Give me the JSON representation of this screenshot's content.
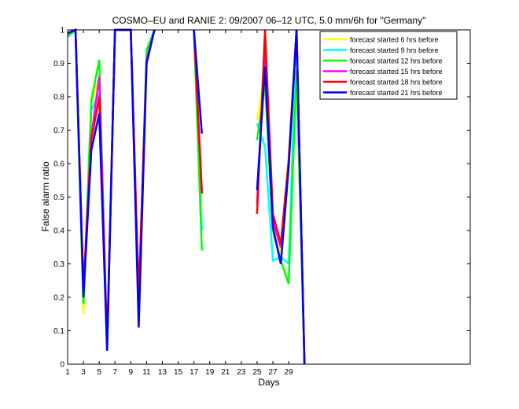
{
  "chart_data": {
    "type": "line",
    "title": "COSMO–EU and RANIE 2: 09/2007 06–12 UTC, 5.0 mm/6h for \"Germany\"",
    "xlabel": "Days",
    "ylabel": "False alarm ratio",
    "xlim": [
      1,
      52
    ],
    "ylim": [
      0,
      1
    ],
    "xticks": [
      1,
      3,
      5,
      7,
      9,
      11,
      13,
      15,
      17,
      19,
      21,
      23,
      25,
      27,
      29
    ],
    "yticks": [
      0,
      0.1,
      0.2,
      0.3,
      0.4,
      0.5,
      0.6,
      0.7,
      0.8,
      0.9,
      1
    ],
    "ytick_labels": [
      "0",
      "0.1",
      "0.2",
      "0.3",
      "0.4",
      "0.5",
      "0.6",
      "0.7",
      "0.8",
      "0.9",
      "1"
    ],
    "grid": false,
    "legend_position": "top-right",
    "series": [
      {
        "name": "forecast started 6 hrs before",
        "color": "#ffff00",
        "segments": [
          [
            [
              1,
              0.99
            ],
            [
              2,
              1.0
            ],
            [
              3,
              0.15
            ],
            [
              4,
              0.78
            ],
            [
              5,
              0.86
            ],
            [
              6,
              0.05
            ],
            [
              7,
              1.0
            ],
            [
              8,
              1.0
            ],
            [
              9,
              1.0
            ],
            [
              10,
              0.12
            ],
            [
              11,
              0.93
            ],
            [
              12,
              1.0
            ]
          ],
          [
            [
              15,
              1.0
            ]
          ],
          [
            [
              17,
              1.0
            ],
            [
              18,
              0.51
            ]
          ],
          [
            [
              25,
              0.73
            ],
            [
              26,
              0.87
            ],
            [
              27,
              0.45
            ],
            [
              28,
              0.33
            ],
            [
              29,
              0.62
            ],
            [
              30,
              1.0
            ],
            [
              31,
              0.0
            ]
          ]
        ]
      },
      {
        "name": "forecast started 9 hrs before",
        "color": "#00ffff",
        "segments": [
          [
            [
              1,
              0.98
            ],
            [
              2,
              1.0
            ],
            [
              3,
              0.18
            ],
            [
              4,
              0.76
            ],
            [
              5,
              0.81
            ],
            [
              6,
              0.05
            ],
            [
              7,
              1.0
            ],
            [
              8,
              1.0
            ],
            [
              9,
              1.0
            ],
            [
              10,
              0.15
            ],
            [
              11,
              0.92
            ],
            [
              12,
              1.0
            ]
          ],
          [
            [
              17,
              1.0
            ],
            [
              18,
              0.4
            ]
          ],
          [
            [
              25,
              0.72
            ],
            [
              26,
              0.65
            ],
            [
              27,
              0.31
            ],
            [
              28,
              0.32
            ],
            [
              29,
              0.3
            ],
            [
              30,
              1.0
            ],
            [
              31,
              0.0
            ]
          ]
        ]
      },
      {
        "name": "forecast started 12 hrs before",
        "color": "#00ff00",
        "segments": [
          [
            [
              1,
              0.98
            ],
            [
              2,
              1.0
            ],
            [
              3,
              0.18
            ],
            [
              4,
              0.79
            ],
            [
              5,
              0.91
            ],
            [
              6,
              0.06
            ],
            [
              7,
              1.0
            ],
            [
              8,
              1.0
            ],
            [
              9,
              1.0
            ],
            [
              10,
              0.17
            ],
            [
              11,
              0.94
            ],
            [
              12,
              1.0
            ]
          ],
          [
            [
              17,
              1.0
            ],
            [
              18,
              0.34
            ]
          ],
          [
            [
              25,
              0.67
            ],
            [
              26,
              0.84
            ],
            [
              27,
              0.4
            ],
            [
              28,
              0.31
            ],
            [
              29,
              0.24
            ],
            [
              30,
              0.88
            ],
            [
              31,
              0.0
            ]
          ]
        ]
      },
      {
        "name": "forecast started 15 hrs before",
        "color": "#ff00ff",
        "segments": [
          [
            [
              1,
              0.99
            ],
            [
              2,
              1.0
            ],
            [
              3,
              0.23
            ],
            [
              4,
              0.68
            ],
            [
              5,
              0.86
            ],
            [
              6,
              0.06
            ],
            [
              7,
              1.0
            ],
            [
              8,
              1.0
            ],
            [
              9,
              1.0
            ],
            [
              10,
              0.2
            ],
            [
              11,
              0.91
            ],
            [
              12,
              1.0
            ]
          ],
          [
            [
              17,
              1.0
            ],
            [
              18,
              0.52
            ]
          ],
          [
            [
              25,
              0.48
            ],
            [
              26,
              0.95
            ],
            [
              27,
              0.43
            ],
            [
              28,
              0.35
            ],
            [
              29,
              0.6
            ],
            [
              30,
              1.0
            ],
            [
              31,
              0.0
            ]
          ]
        ]
      },
      {
        "name": "forecast started 18 hrs before",
        "color": "#ff0000",
        "segments": [
          [
            [
              1,
              0.99
            ],
            [
              2,
              1.0
            ],
            [
              3,
              0.22
            ],
            [
              4,
              0.67
            ],
            [
              5,
              0.8
            ],
            [
              6,
              0.05
            ],
            [
              7,
              1.0
            ],
            [
              8,
              1.0
            ],
            [
              9,
              1.0
            ],
            [
              10,
              0.2
            ],
            [
              11,
              0.9
            ],
            [
              12,
              1.0
            ]
          ],
          [
            [
              15,
              1.0
            ]
          ],
          [
            [
              17,
              1.0
            ],
            [
              18,
              0.51
            ]
          ],
          [
            [
              25,
              0.45
            ],
            [
              26,
              1.0
            ],
            [
              27,
              0.45
            ],
            [
              28,
              0.36
            ],
            [
              29,
              0.61
            ],
            [
              30,
              1.0
            ],
            [
              31,
              0.0
            ]
          ]
        ]
      },
      {
        "name": "forecast started 21 hrs before",
        "color": "#0000ff",
        "segments": [
          [
            [
              1,
              0.99
            ],
            [
              2,
              1.0
            ],
            [
              3,
              0.2
            ],
            [
              4,
              0.64
            ],
            [
              5,
              0.75
            ],
            [
              6,
              0.04
            ],
            [
              7,
              1.0
            ],
            [
              8,
              1.0
            ],
            [
              9,
              1.0
            ],
            [
              10,
              0.11
            ],
            [
              11,
              0.9
            ],
            [
              12,
              1.0
            ]
          ],
          [
            [
              17,
              1.0
            ],
            [
              18,
              0.69
            ]
          ],
          [
            [
              25,
              0.52
            ],
            [
              26,
              0.89
            ],
            [
              27,
              0.41
            ],
            [
              28,
              0.3
            ],
            [
              29,
              0.59
            ],
            [
              30,
              1.0
            ],
            [
              31,
              0.0
            ]
          ]
        ]
      }
    ]
  }
}
